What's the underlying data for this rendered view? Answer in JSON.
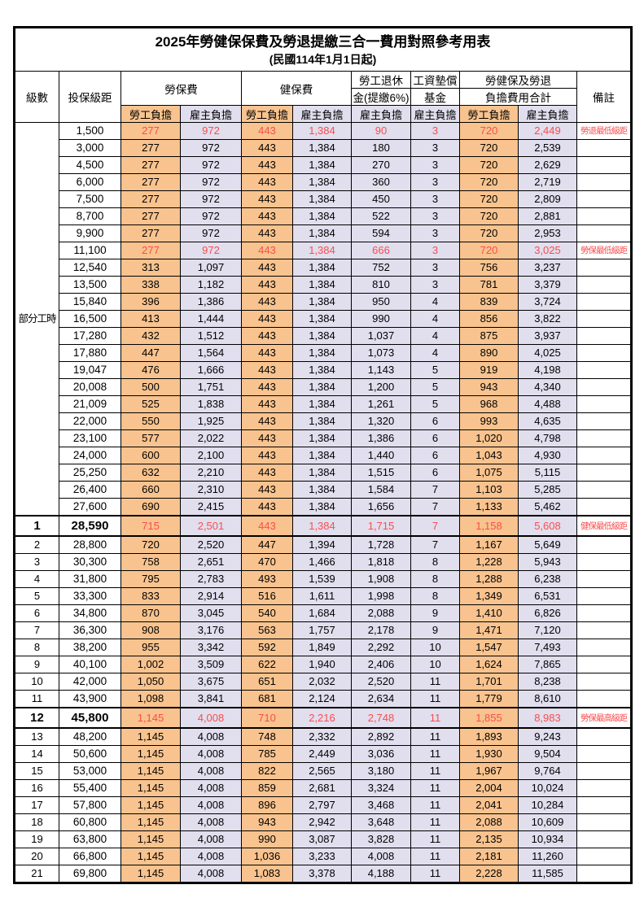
{
  "title": "2025年勞健保保費及勞退提繳三合一費用對照參考用表",
  "subtitle": "(民國114年1月1日起)",
  "header": {
    "level": "級數",
    "bracket": "投保級距",
    "labor_ins": "勞保費",
    "health_ins": "健保費",
    "pension_line1": "勞工退休",
    "pension_line2": "金(提繳6%)",
    "wage_fund_line1": "工資墊償",
    "wage_fund_line2": "基金",
    "total_line1": "勞健保及勞退",
    "total_line2": "負擔費用合計",
    "remark": "備註",
    "employee": "勞工負擔",
    "employer": "雇主負擔"
  },
  "part_time_label": "部分工時",
  "part_time_span": 23,
  "colors": {
    "employee_bg": "#F8C38E",
    "employer_bg": "#E1DEEE",
    "highlight_text": "#FB4D4D",
    "border": "#000000",
    "background": "#FFFFFF"
  },
  "rows": [
    {
      "level": "",
      "bracket": "1,500",
      "values": [
        "277",
        "972",
        "443",
        "1,384",
        "90",
        "3",
        "720",
        "2,449"
      ],
      "remark": "勞退最低級距",
      "highlight": true,
      "bold": false
    },
    {
      "level": "",
      "bracket": "3,000",
      "values": [
        "277",
        "972",
        "443",
        "1,384",
        "180",
        "3",
        "720",
        "2,539"
      ],
      "remark": "",
      "highlight": false,
      "bold": false
    },
    {
      "level": "",
      "bracket": "4,500",
      "values": [
        "277",
        "972",
        "443",
        "1,384",
        "270",
        "3",
        "720",
        "2,629"
      ],
      "remark": "",
      "highlight": false,
      "bold": false
    },
    {
      "level": "",
      "bracket": "6,000",
      "values": [
        "277",
        "972",
        "443",
        "1,384",
        "360",
        "3",
        "720",
        "2,719"
      ],
      "remark": "",
      "highlight": false,
      "bold": false
    },
    {
      "level": "",
      "bracket": "7,500",
      "values": [
        "277",
        "972",
        "443",
        "1,384",
        "450",
        "3",
        "720",
        "2,809"
      ],
      "remark": "",
      "highlight": false,
      "bold": false
    },
    {
      "level": "",
      "bracket": "8,700",
      "values": [
        "277",
        "972",
        "443",
        "1,384",
        "522",
        "3",
        "720",
        "2,881"
      ],
      "remark": "",
      "highlight": false,
      "bold": false
    },
    {
      "level": "",
      "bracket": "9,900",
      "values": [
        "277",
        "972",
        "443",
        "1,384",
        "594",
        "3",
        "720",
        "2,953"
      ],
      "remark": "",
      "highlight": false,
      "bold": false
    },
    {
      "level": "",
      "bracket": "11,100",
      "values": [
        "277",
        "972",
        "443",
        "1,384",
        "666",
        "3",
        "720",
        "3,025"
      ],
      "remark": "勞保最低級距",
      "highlight": true,
      "bold": false
    },
    {
      "level": "",
      "bracket": "12,540",
      "values": [
        "313",
        "1,097",
        "443",
        "1,384",
        "752",
        "3",
        "756",
        "3,237"
      ],
      "remark": "",
      "highlight": false,
      "bold": false
    },
    {
      "level": "",
      "bracket": "13,500",
      "values": [
        "338",
        "1,182",
        "443",
        "1,384",
        "810",
        "3",
        "781",
        "3,379"
      ],
      "remark": "",
      "highlight": false,
      "bold": false
    },
    {
      "level": "",
      "bracket": "15,840",
      "values": [
        "396",
        "1,386",
        "443",
        "1,384",
        "950",
        "4",
        "839",
        "3,724"
      ],
      "remark": "",
      "highlight": false,
      "bold": false
    },
    {
      "level": "",
      "bracket": "16,500",
      "values": [
        "413",
        "1,444",
        "443",
        "1,384",
        "990",
        "4",
        "856",
        "3,822"
      ],
      "remark": "",
      "highlight": false,
      "bold": false
    },
    {
      "level": "",
      "bracket": "17,280",
      "values": [
        "432",
        "1,512",
        "443",
        "1,384",
        "1,037",
        "4",
        "875",
        "3,937"
      ],
      "remark": "",
      "highlight": false,
      "bold": false
    },
    {
      "level": "",
      "bracket": "17,880",
      "values": [
        "447",
        "1,564",
        "443",
        "1,384",
        "1,073",
        "4",
        "890",
        "4,025"
      ],
      "remark": "",
      "highlight": false,
      "bold": false
    },
    {
      "level": "",
      "bracket": "19,047",
      "values": [
        "476",
        "1,666",
        "443",
        "1,384",
        "1,143",
        "5",
        "919",
        "4,198"
      ],
      "remark": "",
      "highlight": false,
      "bold": false
    },
    {
      "level": "",
      "bracket": "20,008",
      "values": [
        "500",
        "1,751",
        "443",
        "1,384",
        "1,200",
        "5",
        "943",
        "4,340"
      ],
      "remark": "",
      "highlight": false,
      "bold": false
    },
    {
      "level": "",
      "bracket": "21,009",
      "values": [
        "525",
        "1,838",
        "443",
        "1,384",
        "1,261",
        "5",
        "968",
        "4,488"
      ],
      "remark": "",
      "highlight": false,
      "bold": false
    },
    {
      "level": "",
      "bracket": "22,000",
      "values": [
        "550",
        "1,925",
        "443",
        "1,384",
        "1,320",
        "6",
        "993",
        "4,635"
      ],
      "remark": "",
      "highlight": false,
      "bold": false
    },
    {
      "level": "",
      "bracket": "23,100",
      "values": [
        "577",
        "2,022",
        "443",
        "1,384",
        "1,386",
        "6",
        "1,020",
        "4,798"
      ],
      "remark": "",
      "highlight": false,
      "bold": false
    },
    {
      "level": "",
      "bracket": "24,000",
      "values": [
        "600",
        "2,100",
        "443",
        "1,384",
        "1,440",
        "6",
        "1,043",
        "4,930"
      ],
      "remark": "",
      "highlight": false,
      "bold": false
    },
    {
      "level": "",
      "bracket": "25,250",
      "values": [
        "632",
        "2,210",
        "443",
        "1,384",
        "1,515",
        "6",
        "1,075",
        "5,115"
      ],
      "remark": "",
      "highlight": false,
      "bold": false
    },
    {
      "level": "",
      "bracket": "26,400",
      "values": [
        "660",
        "2,310",
        "443",
        "1,384",
        "1,584",
        "7",
        "1,103",
        "5,285"
      ],
      "remark": "",
      "highlight": false,
      "bold": false
    },
    {
      "level": "",
      "bracket": "27,600",
      "values": [
        "690",
        "2,415",
        "443",
        "1,384",
        "1,656",
        "7",
        "1,133",
        "5,462"
      ],
      "remark": "",
      "highlight": false,
      "bold": false
    },
    {
      "level": "1",
      "bracket": "28,590",
      "values": [
        "715",
        "2,501",
        "443",
        "1,384",
        "1,715",
        "7",
        "1,158",
        "5,608"
      ],
      "remark": "健保最低級距",
      "highlight": true,
      "bold": true
    },
    {
      "level": "2",
      "bracket": "28,800",
      "values": [
        "720",
        "2,520",
        "447",
        "1,394",
        "1,728",
        "7",
        "1,167",
        "5,649"
      ],
      "remark": "",
      "highlight": false,
      "bold": false
    },
    {
      "level": "3",
      "bracket": "30,300",
      "values": [
        "758",
        "2,651",
        "470",
        "1,466",
        "1,818",
        "8",
        "1,228",
        "5,943"
      ],
      "remark": "",
      "highlight": false,
      "bold": false
    },
    {
      "level": "4",
      "bracket": "31,800",
      "values": [
        "795",
        "2,783",
        "493",
        "1,539",
        "1,908",
        "8",
        "1,288",
        "6,238"
      ],
      "remark": "",
      "highlight": false,
      "bold": false
    },
    {
      "level": "5",
      "bracket": "33,300",
      "values": [
        "833",
        "2,914",
        "516",
        "1,611",
        "1,998",
        "8",
        "1,349",
        "6,531"
      ],
      "remark": "",
      "highlight": false,
      "bold": false
    },
    {
      "level": "6",
      "bracket": "34,800",
      "values": [
        "870",
        "3,045",
        "540",
        "1,684",
        "2,088",
        "9",
        "1,410",
        "6,826"
      ],
      "remark": "",
      "highlight": false,
      "bold": false
    },
    {
      "level": "7",
      "bracket": "36,300",
      "values": [
        "908",
        "3,176",
        "563",
        "1,757",
        "2,178",
        "9",
        "1,471",
        "7,120"
      ],
      "remark": "",
      "highlight": false,
      "bold": false
    },
    {
      "level": "8",
      "bracket": "38,200",
      "values": [
        "955",
        "3,342",
        "592",
        "1,849",
        "2,292",
        "10",
        "1,547",
        "7,493"
      ],
      "remark": "",
      "highlight": false,
      "bold": false
    },
    {
      "level": "9",
      "bracket": "40,100",
      "values": [
        "1,002",
        "3,509",
        "622",
        "1,940",
        "2,406",
        "10",
        "1,624",
        "7,865"
      ],
      "remark": "",
      "highlight": false,
      "bold": false
    },
    {
      "level": "10",
      "bracket": "42,000",
      "values": [
        "1,050",
        "3,675",
        "651",
        "2,032",
        "2,520",
        "11",
        "1,701",
        "8,238"
      ],
      "remark": "",
      "highlight": false,
      "bold": false
    },
    {
      "level": "11",
      "bracket": "43,900",
      "values": [
        "1,098",
        "3,841",
        "681",
        "2,124",
        "2,634",
        "11",
        "1,779",
        "8,610"
      ],
      "remark": "",
      "highlight": false,
      "bold": false
    },
    {
      "level": "12",
      "bracket": "45,800",
      "values": [
        "1,145",
        "4,008",
        "710",
        "2,216",
        "2,748",
        "11",
        "1,855",
        "8,983"
      ],
      "remark": "勞保最高級距",
      "highlight": true,
      "bold": true
    },
    {
      "level": "13",
      "bracket": "48,200",
      "values": [
        "1,145",
        "4,008",
        "748",
        "2,332",
        "2,892",
        "11",
        "1,893",
        "9,243"
      ],
      "remark": "",
      "highlight": false,
      "bold": false
    },
    {
      "level": "14",
      "bracket": "50,600",
      "values": [
        "1,145",
        "4,008",
        "785",
        "2,449",
        "3,036",
        "11",
        "1,930",
        "9,504"
      ],
      "remark": "",
      "highlight": false,
      "bold": false
    },
    {
      "level": "15",
      "bracket": "53,000",
      "values": [
        "1,145",
        "4,008",
        "822",
        "2,565",
        "3,180",
        "11",
        "1,967",
        "9,764"
      ],
      "remark": "",
      "highlight": false,
      "bold": false
    },
    {
      "level": "16",
      "bracket": "55,400",
      "values": [
        "1,145",
        "4,008",
        "859",
        "2,681",
        "3,324",
        "11",
        "2,004",
        "10,024"
      ],
      "remark": "",
      "highlight": false,
      "bold": false
    },
    {
      "level": "17",
      "bracket": "57,800",
      "values": [
        "1,145",
        "4,008",
        "896",
        "2,797",
        "3,468",
        "11",
        "2,041",
        "10,284"
      ],
      "remark": "",
      "highlight": false,
      "bold": false
    },
    {
      "level": "18",
      "bracket": "60,800",
      "values": [
        "1,145",
        "4,008",
        "943",
        "2,942",
        "3,648",
        "11",
        "2,088",
        "10,609"
      ],
      "remark": "",
      "highlight": false,
      "bold": false
    },
    {
      "level": "19",
      "bracket": "63,800",
      "values": [
        "1,145",
        "4,008",
        "990",
        "3,087",
        "3,828",
        "11",
        "2,135",
        "10,934"
      ],
      "remark": "",
      "highlight": false,
      "bold": false
    },
    {
      "level": "20",
      "bracket": "66,800",
      "values": [
        "1,145",
        "4,008",
        "1,036",
        "3,233",
        "4,008",
        "11",
        "2,181",
        "11,260"
      ],
      "remark": "",
      "highlight": false,
      "bold": false
    },
    {
      "level": "21",
      "bracket": "69,800",
      "values": [
        "1,145",
        "4,008",
        "1,083",
        "3,378",
        "4,188",
        "11",
        "2,228",
        "11,585"
      ],
      "remark": "",
      "highlight": false,
      "bold": false
    }
  ]
}
